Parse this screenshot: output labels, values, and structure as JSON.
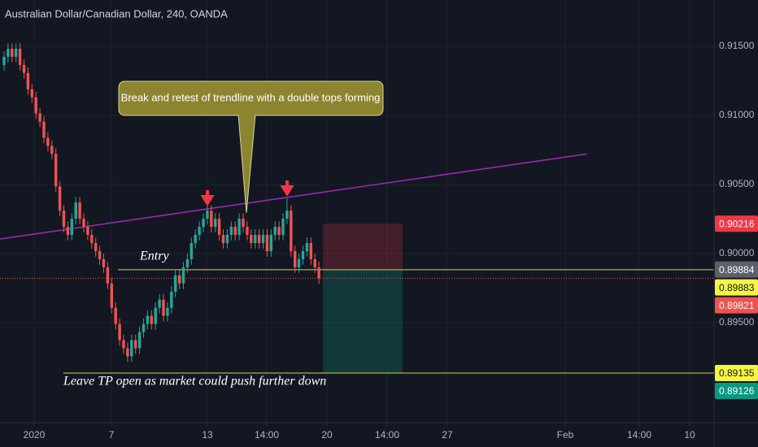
{
  "chart_data": {
    "type": "candlestick",
    "title": "Australian Dollar/Canadian Dollar, 240, OANDA",
    "up_color": "#26a69a",
    "down_color": "#ef5350",
    "grid": true,
    "xlim": [
      -1.02,
      178.16
    ],
    "xticks": [
      {
        "value": 7.55,
        "label": "2020"
      },
      {
        "value": 26.94,
        "label": "7"
      },
      {
        "value": 51.02,
        "label": "13"
      },
      {
        "value": 65.92,
        "label": "14:00"
      },
      {
        "value": 81.02,
        "label": "20"
      },
      {
        "value": 96.12,
        "label": "14:00"
      },
      {
        "value": 111.22,
        "label": "27"
      },
      {
        "value": 140.82,
        "label": "Feb"
      },
      {
        "value": 159.39,
        "label": "14:00"
      },
      {
        "value": 172.04,
        "label": "10"
      }
    ],
    "ylim": [
      0.88776,
      0.91835
    ],
    "yticks": [
      {
        "value": 0.915,
        "label": "0.91500"
      },
      {
        "value": 0.91,
        "label": "0.91000"
      },
      {
        "value": 0.905,
        "label": "0.90500"
      },
      {
        "value": 0.9,
        "label": "0.90000"
      },
      {
        "value": 0.895,
        "label": "0.89500"
      }
    ],
    "open": [
      0.91365,
      0.91424,
      0.91482,
      0.91424,
      0.91482,
      0.91365,
      0.91307,
      0.91189,
      0.91131,
      0.91014,
      0.90955,
      0.90838,
      0.90779,
      0.90721,
      0.90486,
      0.9031,
      0.90193,
      0.90135,
      0.90252,
      0.90369,
      0.90252,
      0.90193,
      0.90135,
      0.90076,
      0.90017,
      0.89959,
      0.899,
      0.89783,
      0.89607,
      0.8949,
      0.89373,
      0.89314,
      0.89256,
      0.89373,
      0.89314,
      0.89431,
      0.8949,
      0.89549,
      0.8949,
      0.89607,
      0.89666,
      0.89549,
      0.89607,
      0.89724,
      0.89842,
      0.89783,
      0.899,
      0.89959,
      0.90076,
      0.90135,
      0.90193,
      0.90252,
      0.9031,
      0.90193,
      0.90252,
      0.90135,
      0.90076,
      0.90135,
      0.90193,
      0.90135,
      0.90252,
      0.90193,
      0.90135,
      0.90076,
      0.90135,
      0.90076,
      0.90135,
      0.90017,
      0.90135,
      0.90193,
      0.90135,
      0.90252,
      0.9031,
      0.90017,
      0.899,
      0.89959,
      0.90017,
      0.90076,
      0.89959,
      0.899
    ],
    "high": [
      0.91464,
      0.91522,
      0.91522,
      0.91522,
      0.91522,
      0.91405,
      0.91347,
      0.91229,
      0.91171,
      0.91054,
      0.90995,
      0.90878,
      0.90819,
      0.90761,
      0.90526,
      0.9035,
      0.90233,
      0.90292,
      0.90409,
      0.90409,
      0.90292,
      0.90233,
      0.90175,
      0.90116,
      0.90057,
      0.89999,
      0.8994,
      0.89823,
      0.89647,
      0.8953,
      0.89413,
      0.89354,
      0.89413,
      0.89413,
      0.89471,
      0.8953,
      0.89589,
      0.89589,
      0.89647,
      0.89706,
      0.89706,
      0.89647,
      0.89764,
      0.89882,
      0.89882,
      0.8994,
      0.89999,
      0.90116,
      0.90175,
      0.90233,
      0.90292,
      0.9035,
      0.9035,
      0.90292,
      0.90292,
      0.90175,
      0.90175,
      0.90233,
      0.90233,
      0.90292,
      0.90292,
      0.90233,
      0.90175,
      0.90175,
      0.90175,
      0.90175,
      0.90175,
      0.90175,
      0.90233,
      0.90233,
      0.90292,
      0.904,
      0.9035,
      0.90057,
      0.89999,
      0.90057,
      0.90116,
      0.90116,
      0.89999,
      0.8994
    ],
    "low": [
      0.91325,
      0.91384,
      0.91384,
      0.91384,
      0.91325,
      0.91267,
      0.91149,
      0.91091,
      0.90974,
      0.90915,
      0.90798,
      0.90739,
      0.90681,
      0.90446,
      0.9027,
      0.90153,
      0.90095,
      0.90095,
      0.90212,
      0.90212,
      0.90153,
      0.90095,
      0.90036,
      0.89977,
      0.89919,
      0.8986,
      0.89743,
      0.89567,
      0.8945,
      0.89333,
      0.89274,
      0.89216,
      0.89216,
      0.89274,
      0.89274,
      0.89391,
      0.8945,
      0.8945,
      0.8945,
      0.89567,
      0.89509,
      0.89509,
      0.89567,
      0.89684,
      0.89743,
      0.89743,
      0.8986,
      0.89919,
      0.90036,
      0.90095,
      0.90153,
      0.90212,
      0.90153,
      0.90153,
      0.90095,
      0.90036,
      0.90036,
      0.90095,
      0.90095,
      0.90095,
      0.90153,
      0.90095,
      0.90036,
      0.90036,
      0.90036,
      0.90036,
      0.89977,
      0.89977,
      0.90095,
      0.90095,
      0.90095,
      0.90212,
      0.89977,
      0.8986,
      0.8986,
      0.89919,
      0.89977,
      0.89919,
      0.8986,
      0.89781
    ],
    "close": [
      0.91424,
      0.91482,
      0.91424,
      0.91482,
      0.91365,
      0.91307,
      0.91189,
      0.91131,
      0.91014,
      0.90955,
      0.90838,
      0.90779,
      0.90721,
      0.90486,
      0.9031,
      0.90193,
      0.90135,
      0.90252,
      0.90369,
      0.90252,
      0.90193,
      0.90135,
      0.90076,
      0.90017,
      0.89959,
      0.899,
      0.89783,
      0.89607,
      0.8949,
      0.89373,
      0.89314,
      0.89256,
      0.89373,
      0.89314,
      0.89431,
      0.8949,
      0.89549,
      0.8949,
      0.89607,
      0.89666,
      0.89549,
      0.89607,
      0.89724,
      0.89842,
      0.89783,
      0.899,
      0.89959,
      0.90076,
      0.90135,
      0.90193,
      0.90252,
      0.9031,
      0.90193,
      0.90252,
      0.90135,
      0.90076,
      0.90135,
      0.90193,
      0.90135,
      0.90252,
      0.90193,
      0.90135,
      0.90076,
      0.90135,
      0.90076,
      0.90135,
      0.90017,
      0.90135,
      0.90193,
      0.90135,
      0.90252,
      0.9031,
      0.90017,
      0.899,
      0.89959,
      0.90017,
      0.90076,
      0.89959,
      0.899,
      0.89821
    ],
    "trendline": {
      "x": [
        -1.02,
        146.3
      ],
      "y": [
        0.90105,
        0.90721
      ],
      "color": "#9c27b0"
    },
    "position": {
      "start": 80.0,
      "end": 100.0,
      "stop": 0.90216,
      "entry": 0.89883,
      "target": 0.89135
    },
    "horizontal_lines": [
      {
        "start": 28.6,
        "value": 0.89883,
        "color": "#d4d44a"
      },
      {
        "start": 14.9,
        "value": 0.89135,
        "color": "#d4d44a"
      }
    ],
    "last_price": {
      "value": 0.89821,
      "color": "#ef5350"
    },
    "price_labels": [
      {
        "value": 0.90216,
        "color": "#f23645",
        "text_color": "#ffffff"
      },
      {
        "value": 0.89883,
        "color": "#f5f542",
        "text_color": "#131722"
      },
      {
        "value": 0.89884,
        "color": "#5d606b",
        "text_color": "#ffffff"
      },
      {
        "value": 0.89821,
        "color": "#ef5350",
        "text_color": "#ffffff"
      },
      {
        "value": 0.89135,
        "color": "#f5f542",
        "text_color": "#131722"
      },
      {
        "value": 0.89126,
        "color": "#089981",
        "text_color": "#ffffff"
      }
    ],
    "callout": "Break and retest of trendline with a double tops forming",
    "entry_note": "Entry",
    "tp_note": "Leave TP open as market could push further down"
  }
}
